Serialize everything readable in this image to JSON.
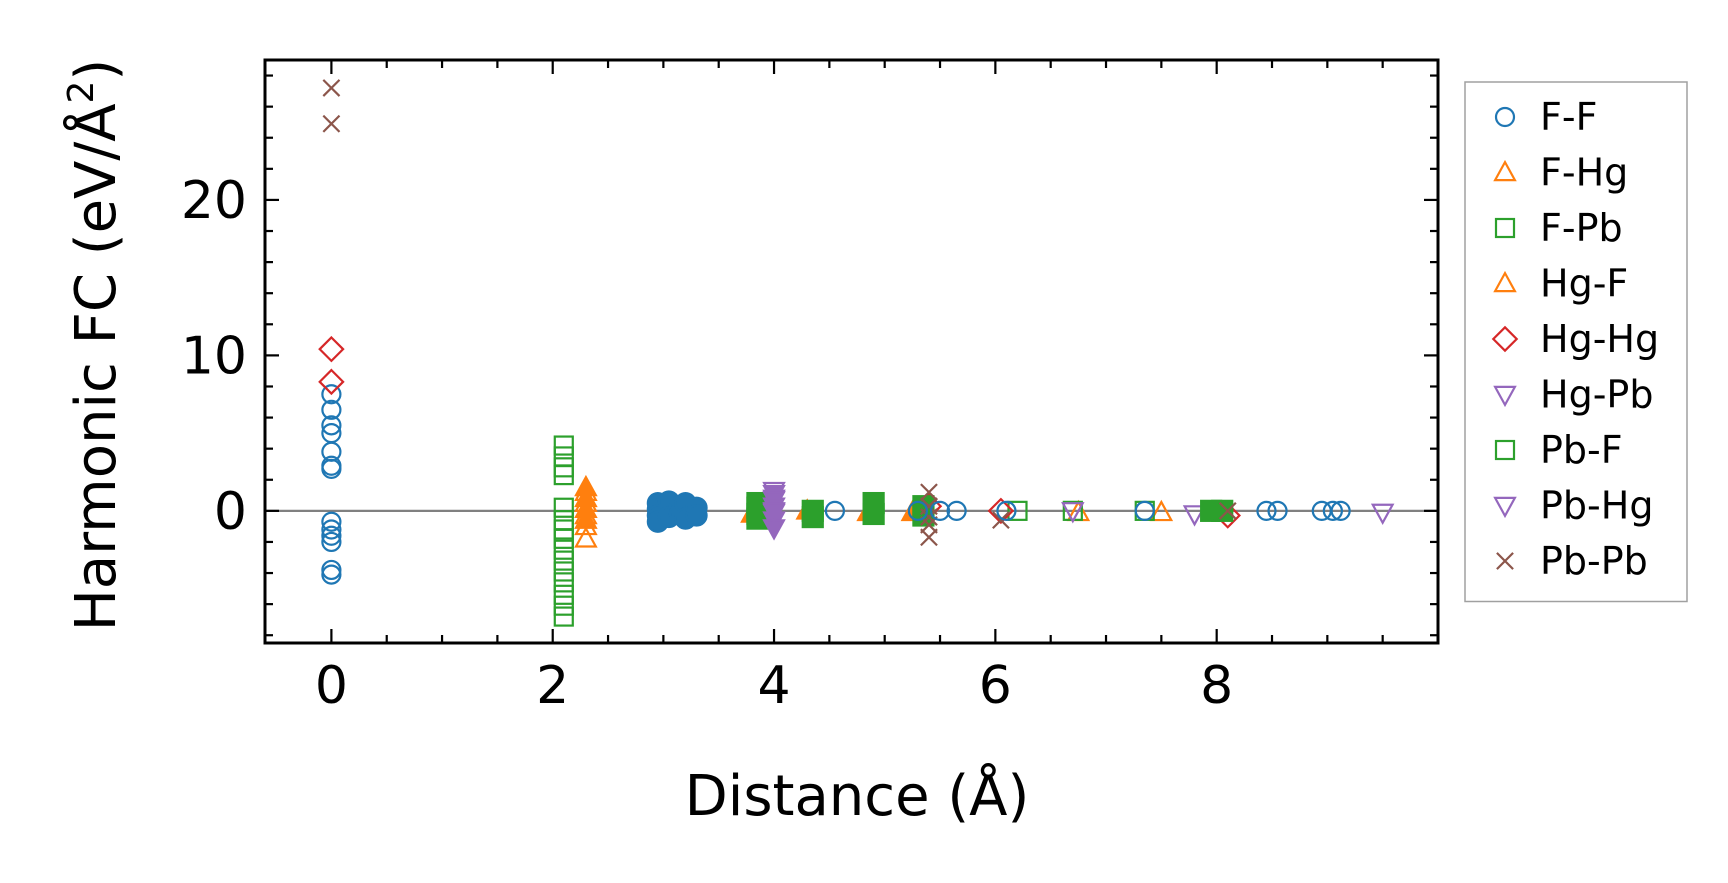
{
  "chart_data": {
    "type": "scatter",
    "title": "",
    "xlabel": "Distance (Å)",
    "ylabel_main": "Harmonic FC (eV/Å",
    "ylabel_sup": "2",
    "ylabel_close": ")",
    "xlim": [
      -0.6,
      10.0
    ],
    "ylim": [
      -8.5,
      29.0
    ],
    "xticks": [
      0,
      2,
      4,
      6,
      8
    ],
    "xtick_labels": [
      "0",
      "2",
      "4",
      "6",
      "8"
    ],
    "yticks": [
      0,
      10,
      20
    ],
    "ytick_labels": [
      "0",
      "10",
      "20"
    ],
    "zero_line": true,
    "grid": false,
    "legend_position": "right outside",
    "series": [
      {
        "name": "F-F",
        "marker": "circle",
        "filled": false,
        "color": "#1f77b4",
        "points": [
          [
            0,
            7.5
          ],
          [
            0,
            6.5
          ],
          [
            0,
            5.5
          ],
          [
            0,
            5.0
          ],
          [
            0,
            3.8
          ],
          [
            0,
            2.9
          ],
          [
            0,
            2.7
          ],
          [
            0,
            -0.7
          ],
          [
            0,
            -1.2
          ],
          [
            0,
            -1.6
          ],
          [
            0,
            -2.0
          ],
          [
            0,
            -3.8
          ],
          [
            0,
            -4.1
          ]
        ]
      },
      {
        "name": "F-Hg",
        "marker": "triangle-up",
        "filled": false,
        "color": "#ff7f0e",
        "points": [
          [
            2.3,
            1.2
          ],
          [
            2.3,
            0.5
          ],
          [
            2.3,
            -0.3
          ],
          [
            2.3,
            -1.0
          ],
          [
            2.3,
            -1.8
          ],
          [
            7.5,
            -0.1
          ],
          [
            6.75,
            -0.1
          ]
        ]
      },
      {
        "name": "F-Pb",
        "marker": "square",
        "filled": false,
        "color": "#2ca02c",
        "points": [
          [
            2.1,
            4.2
          ],
          [
            2.1,
            3.5
          ],
          [
            2.1,
            2.8
          ],
          [
            2.1,
            2.3
          ],
          [
            2.1,
            0.2
          ],
          [
            2.1,
            -0.6
          ],
          [
            2.1,
            -1.2
          ],
          [
            2.1,
            -1.8
          ],
          [
            2.1,
            -2.5
          ],
          [
            2.1,
            -3.2
          ],
          [
            2.1,
            -3.9
          ],
          [
            2.1,
            -4.6
          ],
          [
            2.1,
            -5.4
          ],
          [
            2.1,
            -6.1
          ],
          [
            2.1,
            -6.8
          ],
          [
            6.2,
            0
          ],
          [
            6.7,
            0
          ],
          [
            7.35,
            0
          ]
        ]
      },
      {
        "name": "Hg-F",
        "marker": "triangle-up",
        "filled": true,
        "color": "#ff7f0e",
        "points": [
          [
            2.3,
            1.5
          ],
          [
            2.3,
            0.8
          ],
          [
            2.3,
            0.1
          ],
          [
            2.3,
            -0.6
          ],
          [
            3.8,
            -0.2
          ],
          [
            4.3,
            0
          ],
          [
            4.85,
            -0.1
          ],
          [
            5.25,
            -0.1
          ],
          [
            5.35,
            0.1
          ]
        ]
      },
      {
        "name": "Hg-Hg",
        "marker": "diamond",
        "filled": false,
        "color": "#d62728",
        "points": [
          [
            0,
            10.4
          ],
          [
            0,
            8.3
          ],
          [
            5.4,
            0.3
          ],
          [
            6.05,
            0
          ],
          [
            8.1,
            -0.3
          ]
        ]
      },
      {
        "name": "Hg-Pb",
        "marker": "triangle-down",
        "filled": false,
        "color": "#9467bd",
        "points": [
          [
            4.0,
            1.3
          ],
          [
            4.0,
            0.8
          ],
          [
            6.7,
            0
          ],
          [
            7.8,
            -0.2
          ],
          [
            9.5,
            -0.1
          ]
        ]
      },
      {
        "name": "Pb-F",
        "marker": "square",
        "filled": true,
        "color": "#2ca02c",
        "points": [
          [
            3.85,
            0.5
          ],
          [
            3.85,
            0.2
          ],
          [
            3.85,
            -0.2
          ],
          [
            3.85,
            -0.5
          ],
          [
            4.35,
            0
          ],
          [
            4.35,
            -0.4
          ],
          [
            4.9,
            0.5
          ],
          [
            4.9,
            -0.2
          ],
          [
            5.35,
            0.3
          ],
          [
            5.35,
            -0.3
          ],
          [
            7.95,
            0
          ],
          [
            8.05,
            0
          ]
        ]
      },
      {
        "name": "Pb-Hg",
        "marker": "triangle-down",
        "filled": true,
        "color": "#9467bd",
        "points": [
          [
            4.0,
            1.1
          ],
          [
            4.0,
            0.7
          ],
          [
            4.0,
            0.3
          ],
          [
            4.0,
            -0.1
          ],
          [
            4.0,
            -0.6
          ],
          [
            4.0,
            -1.1
          ],
          [
            4.0,
            0
          ]
        ]
      },
      {
        "name": "Pb-Pb",
        "marker": "x",
        "filled": false,
        "color": "#8c564b",
        "points": [
          [
            0,
            27.2
          ],
          [
            0,
            24.9
          ],
          [
            5.4,
            1.2
          ],
          [
            5.4,
            0.3
          ],
          [
            5.4,
            -0.4
          ],
          [
            5.4,
            -0.9
          ],
          [
            5.4,
            -1.7
          ],
          [
            6.05,
            -0.6
          ],
          [
            8.1,
            0
          ]
        ]
      },
      {
        "name": "F-F",
        "marker": "circle",
        "filled": true,
        "color": "#1f77b4",
        "in_legend": false,
        "points": [
          [
            2.95,
            0.5
          ],
          [
            2.95,
            0.1
          ],
          [
            2.95,
            -0.3
          ],
          [
            2.95,
            -0.7
          ],
          [
            3.05,
            0.6
          ],
          [
            3.05,
            -0.4
          ],
          [
            3.15,
            0.3
          ],
          [
            3.15,
            -0.2
          ],
          [
            3.2,
            0.5
          ],
          [
            3.2,
            -0.5
          ],
          [
            3.3,
            0.2
          ],
          [
            3.3,
            -0.3
          ]
        ]
      },
      {
        "name": "F-F",
        "marker": "circle",
        "filled": false,
        "color": "#1f77b4",
        "in_legend": false,
        "points": [
          [
            4.55,
            0
          ],
          [
            5.3,
            0
          ],
          [
            5.5,
            0
          ],
          [
            5.65,
            0
          ],
          [
            6.1,
            0
          ],
          [
            7.35,
            0
          ],
          [
            8.45,
            0
          ],
          [
            8.55,
            0
          ],
          [
            8.95,
            0
          ],
          [
            9.05,
            0
          ],
          [
            9.12,
            0
          ]
        ]
      }
    ]
  }
}
